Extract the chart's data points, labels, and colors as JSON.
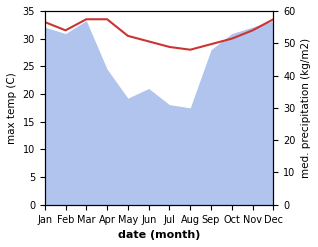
{
  "months": [
    "Jan",
    "Feb",
    "Mar",
    "Apr",
    "May",
    "Jun",
    "Jul",
    "Aug",
    "Sep",
    "Oct",
    "Nov",
    "Dec"
  ],
  "x": [
    0,
    1,
    2,
    3,
    4,
    5,
    6,
    7,
    8,
    9,
    10,
    11
  ],
  "temperature": [
    33.0,
    31.5,
    33.5,
    33.5,
    30.5,
    29.5,
    28.5,
    28.0,
    29.0,
    30.0,
    31.5,
    33.5
  ],
  "precipitation_right": [
    55.0,
    53.0,
    57.0,
    42.0,
    33.0,
    36.0,
    31.0,
    30.0,
    48.0,
    53.0,
    55.0,
    57.0
  ],
  "temp_color": "#cc3333",
  "precip_color": "#b0c4ee",
  "ylabel_left": "max temp (C)",
  "ylabel_right": "med. precipitation (kg/m2)",
  "xlabel": "date (month)",
  "ylim_left": [
    0,
    35
  ],
  "ylim_right": [
    0,
    60
  ],
  "yticks_left": [
    0,
    5,
    10,
    15,
    20,
    25,
    30,
    35
  ],
  "yticks_right": [
    0,
    10,
    20,
    30,
    40,
    50,
    60
  ],
  "bg_color": "#ffffff"
}
